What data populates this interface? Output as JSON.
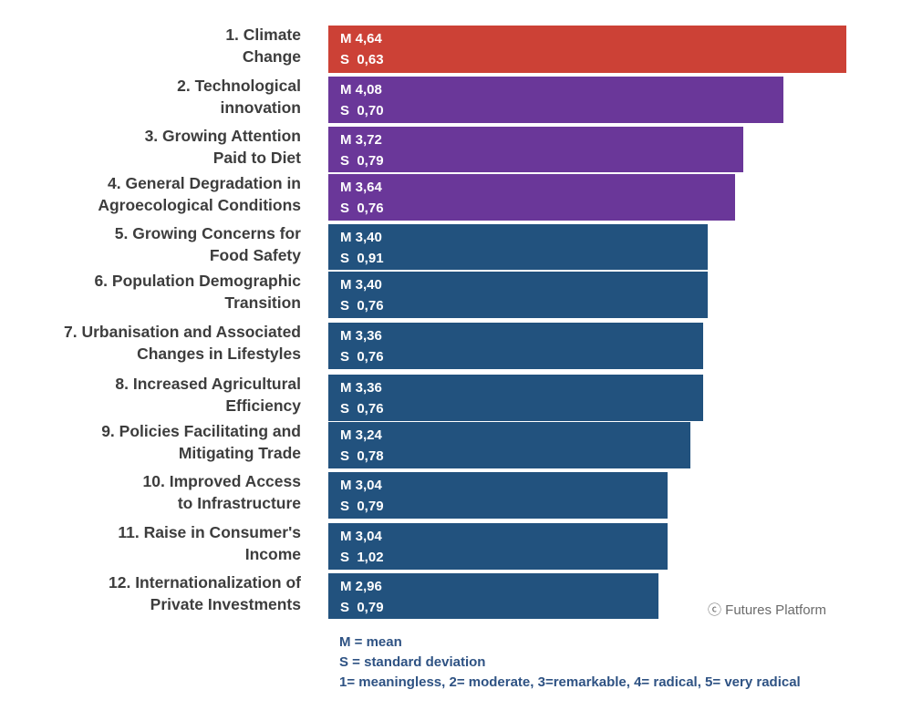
{
  "chart_data": {
    "type": "bar",
    "orientation": "horizontal",
    "categories": [
      [
        "1. Climate",
        "Change"
      ],
      [
        "2. Technological",
        "innovation"
      ],
      [
        "3. Growing Attention",
        "Paid to Diet"
      ],
      [
        "4. General Degradation in",
        "Agroecological Conditions"
      ],
      [
        "5. Growing Concerns for",
        "Food Safety"
      ],
      [
        "6. Population Demographic",
        "Transition"
      ],
      [
        "7. Urbanisation and Associated",
        "Changes in Lifestyles"
      ],
      [
        "8. Increased Agricultural",
        "Efficiency"
      ],
      [
        "9. Policies Facilitating and",
        "Mitigating Trade"
      ],
      [
        "10. Improved Access",
        "to Infrastructure"
      ],
      [
        "11. Raise in Consumer's",
        "Income"
      ],
      [
        "12. Internationalization of",
        "Private Investments"
      ]
    ],
    "values": [
      4.64,
      4.08,
      3.72,
      3.64,
      3.4,
      3.4,
      3.36,
      3.36,
      3.24,
      3.04,
      3.04,
      2.96
    ],
    "data_labels": [
      [
        "M 4,64",
        "S  0,63"
      ],
      [
        "M 4,08",
        "S  0,70"
      ],
      [
        "M 3,72",
        "S  0,79"
      ],
      [
        "M 3,64",
        "S  0,76"
      ],
      [
        "M 3,40",
        "S  0,91"
      ],
      [
        "M 3,40",
        "S  0,76"
      ],
      [
        "M 3,36",
        "S  0,76"
      ],
      [
        "M 3,36",
        "S  0,76"
      ],
      [
        "M 3,24",
        "S  0,78"
      ],
      [
        "M 3,04",
        "S  0,79"
      ],
      [
        "M 3,04",
        "S  1,02"
      ],
      [
        "M 2,96",
        "S  0,79"
      ]
    ],
    "bar_colors": [
      "#cc4136",
      "#6a3799",
      "#6a3799",
      "#6a3799",
      "#22527e",
      "#22527e",
      "#22527e",
      "#22527e",
      "#22527e",
      "#22527e",
      "#22527e",
      "#22527e"
    ],
    "xlim": [
      0,
      5
    ],
    "grid": false,
    "title": "",
    "xlabel": "",
    "ylabel": ""
  },
  "legend": {
    "line1": "M = mean",
    "line2": "S = standard deviation",
    "line3": "1= meaningless, 2= moderate, 3=remarkable, 4= radical, 5= very radical"
  },
  "credit": "ⓒ Futures Platform",
  "colors": {
    "label_text": "#3d3d3d",
    "legend_text": "#2e5283",
    "credit_text": "#6b6b6b"
  }
}
